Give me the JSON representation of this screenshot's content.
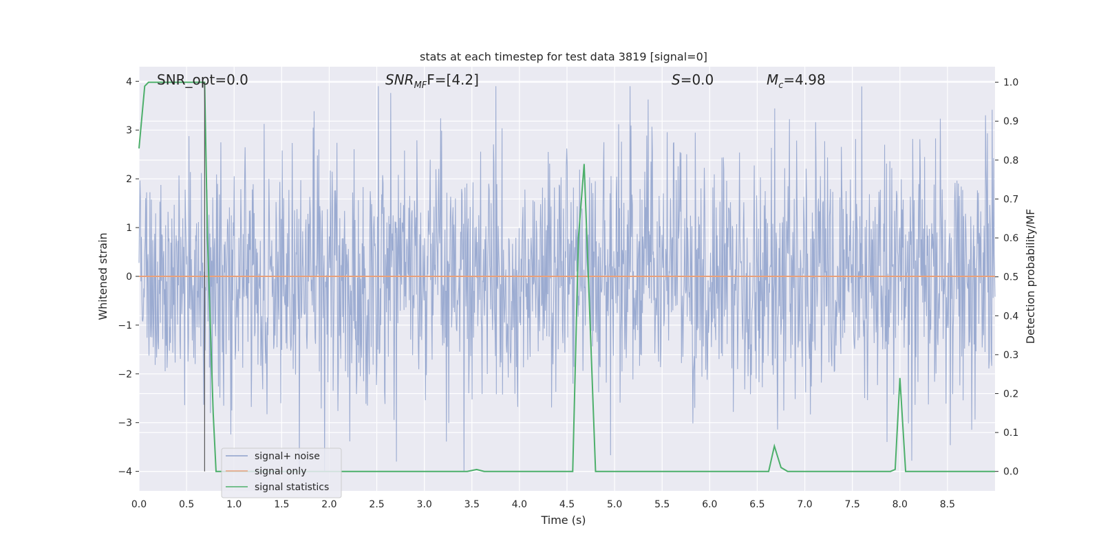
{
  "chart_data": {
    "type": "line",
    "title": "stats at each timestep for test data 3819 [signal=0]",
    "xlabel": "Time (s)",
    "ylabel_left": "Whitened strain",
    "ylabel_right": "Detection probability/MF",
    "xlim": [
      0,
      9.0
    ],
    "ylim_left": [
      -4.4,
      4.3
    ],
    "ylim_right": [
      -0.05,
      1.04
    ],
    "xticks": [
      "0.0",
      "0.5",
      "1.0",
      "1.5",
      "2.0",
      "2.5",
      "3.0",
      "3.5",
      "4.0",
      "4.5",
      "5.0",
      "5.5",
      "6.0",
      "6.5",
      "7.0",
      "7.5",
      "8.0",
      "8.5"
    ],
    "yticks_left": [
      "4",
      "3",
      "2",
      "1",
      "0",
      "−1",
      "−2",
      "−3",
      "−4"
    ],
    "yticks_right": [
      "1.0",
      "0.9",
      "0.8",
      "0.7",
      "0.6",
      "0.5",
      "0.4",
      "0.3",
      "0.2",
      "0.1",
      "0.0"
    ],
    "grid": true,
    "annotations": {
      "snr_opt": "SNR_opt=0.0",
      "snr_mf_main": "SNR",
      "snr_mf_sub": "MF",
      "snr_mf_value": "F=[4.2]",
      "s_main": "S",
      "s_value": "=0.0",
      "mc_main": "M",
      "mc_sub": "c",
      "mc_value": "=4.98"
    },
    "marker_line_x": 0.69,
    "legend_position": "lower-left",
    "series": [
      {
        "name": "signal+ noise",
        "axis": "left",
        "color": "#8da0cb",
        "description_kind": "noise",
        "amplitude_std": 1.0,
        "x_range": [
          0.0,
          9.0
        ],
        "sample_count": 1800
      },
      {
        "name": "signal only",
        "axis": "left",
        "color": "#e8a07a",
        "x": [
          0.0,
          9.0
        ],
        "y": [
          0.0,
          0.0
        ]
      },
      {
        "name": "signal statistics",
        "axis": "right",
        "color": "#4caf6a",
        "x": [
          0.0,
          0.06,
          0.1,
          0.2,
          0.3,
          0.4,
          0.5,
          0.6,
          0.69,
          0.72,
          0.78,
          0.81,
          0.9,
          1.0,
          2.0,
          3.0,
          3.45,
          3.55,
          3.63,
          4.0,
          4.5,
          4.56,
          4.62,
          4.68,
          4.74,
          4.8,
          4.9,
          5.5,
          6.0,
          6.62,
          6.68,
          6.75,
          6.82,
          7.0,
          7.5,
          7.9,
          7.95,
          8.0,
          8.06,
          8.1,
          8.5,
          9.0
        ],
        "y": [
          0.83,
          0.99,
          1.0,
          1.0,
          1.0,
          1.0,
          1.0,
          1.0,
          1.0,
          0.6,
          0.15,
          0.0,
          0.0,
          0.0,
          0.0,
          0.0,
          0.0,
          0.005,
          0.0,
          0.0,
          0.0,
          0.0,
          0.6,
          0.79,
          0.4,
          0.0,
          0.0,
          0.0,
          0.0,
          0.0,
          0.065,
          0.01,
          0.0,
          0.0,
          0.0,
          0.0,
          0.005,
          0.24,
          0.0,
          0.0,
          0.0,
          0.0
        ]
      }
    ]
  }
}
